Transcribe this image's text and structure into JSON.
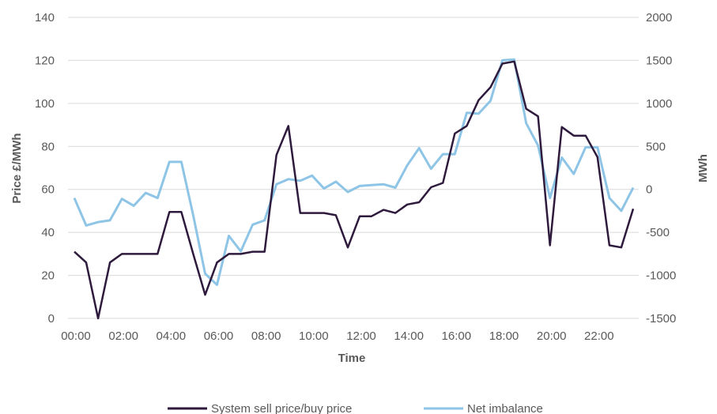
{
  "chart_data": {
    "type": "line",
    "title": "",
    "xlabel": "Time",
    "ylabel": "Price £/MWh",
    "y2label": "MWh",
    "ylim": [
      0,
      140
    ],
    "y2lim": [
      -1500,
      2000
    ],
    "x_tick_labels": [
      "00:00",
      "02:00",
      "04:00",
      "06:00",
      "08:00",
      "10:00",
      "12:00",
      "14:00",
      "16:00",
      "18:00",
      "20:00",
      "22:00"
    ],
    "y_tick_labels": [
      "0",
      "20",
      "40",
      "60",
      "80",
      "100",
      "120",
      "140"
    ],
    "y2_tick_labels": [
      "-1500",
      "-1000",
      "-500",
      "0",
      "500",
      "1000",
      "1500",
      "2000"
    ],
    "grid": true,
    "legend_position": "bottom",
    "x_hours": [
      0.0,
      0.5,
      1.0,
      1.5,
      2.0,
      2.5,
      3.0,
      3.5,
      4.0,
      4.5,
      5.0,
      5.5,
      6.0,
      6.5,
      7.0,
      7.5,
      8.0,
      8.5,
      9.0,
      9.5,
      10.0,
      10.5,
      11.0,
      11.5,
      12.0,
      12.5,
      13.0,
      13.5,
      14.0,
      14.5,
      15.0,
      15.5,
      16.0,
      16.5,
      17.0,
      17.5,
      18.0,
      18.5,
      19.0,
      19.5,
      20.0,
      20.5,
      21.0,
      21.5,
      22.0,
      22.5,
      23.0,
      23.5
    ],
    "series": [
      {
        "name": "System sell price/buy price",
        "axis": "left",
        "color": "#2e1a3c",
        "values": [
          31,
          26,
          0,
          26,
          30,
          30,
          30,
          30,
          49.5,
          49.5,
          30,
          11,
          26,
          30,
          30,
          31,
          31,
          76,
          89.5,
          49,
          49,
          49,
          48,
          33,
          47.5,
          47.5,
          50.5,
          49,
          53,
          54,
          61,
          63,
          86,
          89.5,
          101.5,
          107.5,
          118.5,
          119.5,
          97.5,
          94,
          34,
          89,
          85,
          85,
          75,
          34,
          33,
          51
        ]
      },
      {
        "name": "Net imbalance",
        "axis": "right",
        "color": "#8ec5e6",
        "values": [
          -100,
          -420,
          -380,
          -360,
          -110,
          -190,
          -40,
          -100,
          320,
          320,
          -300,
          -980,
          -1110,
          -540,
          -720,
          -410,
          -360,
          60,
          120,
          100,
          160,
          10,
          90,
          -30,
          40,
          50,
          60,
          20,
          280,
          480,
          240,
          410,
          410,
          890,
          880,
          1030,
          1500,
          1510,
          770,
          510,
          -100,
          370,
          180,
          490,
          490,
          -100,
          -250,
          20
        ]
      }
    ]
  }
}
